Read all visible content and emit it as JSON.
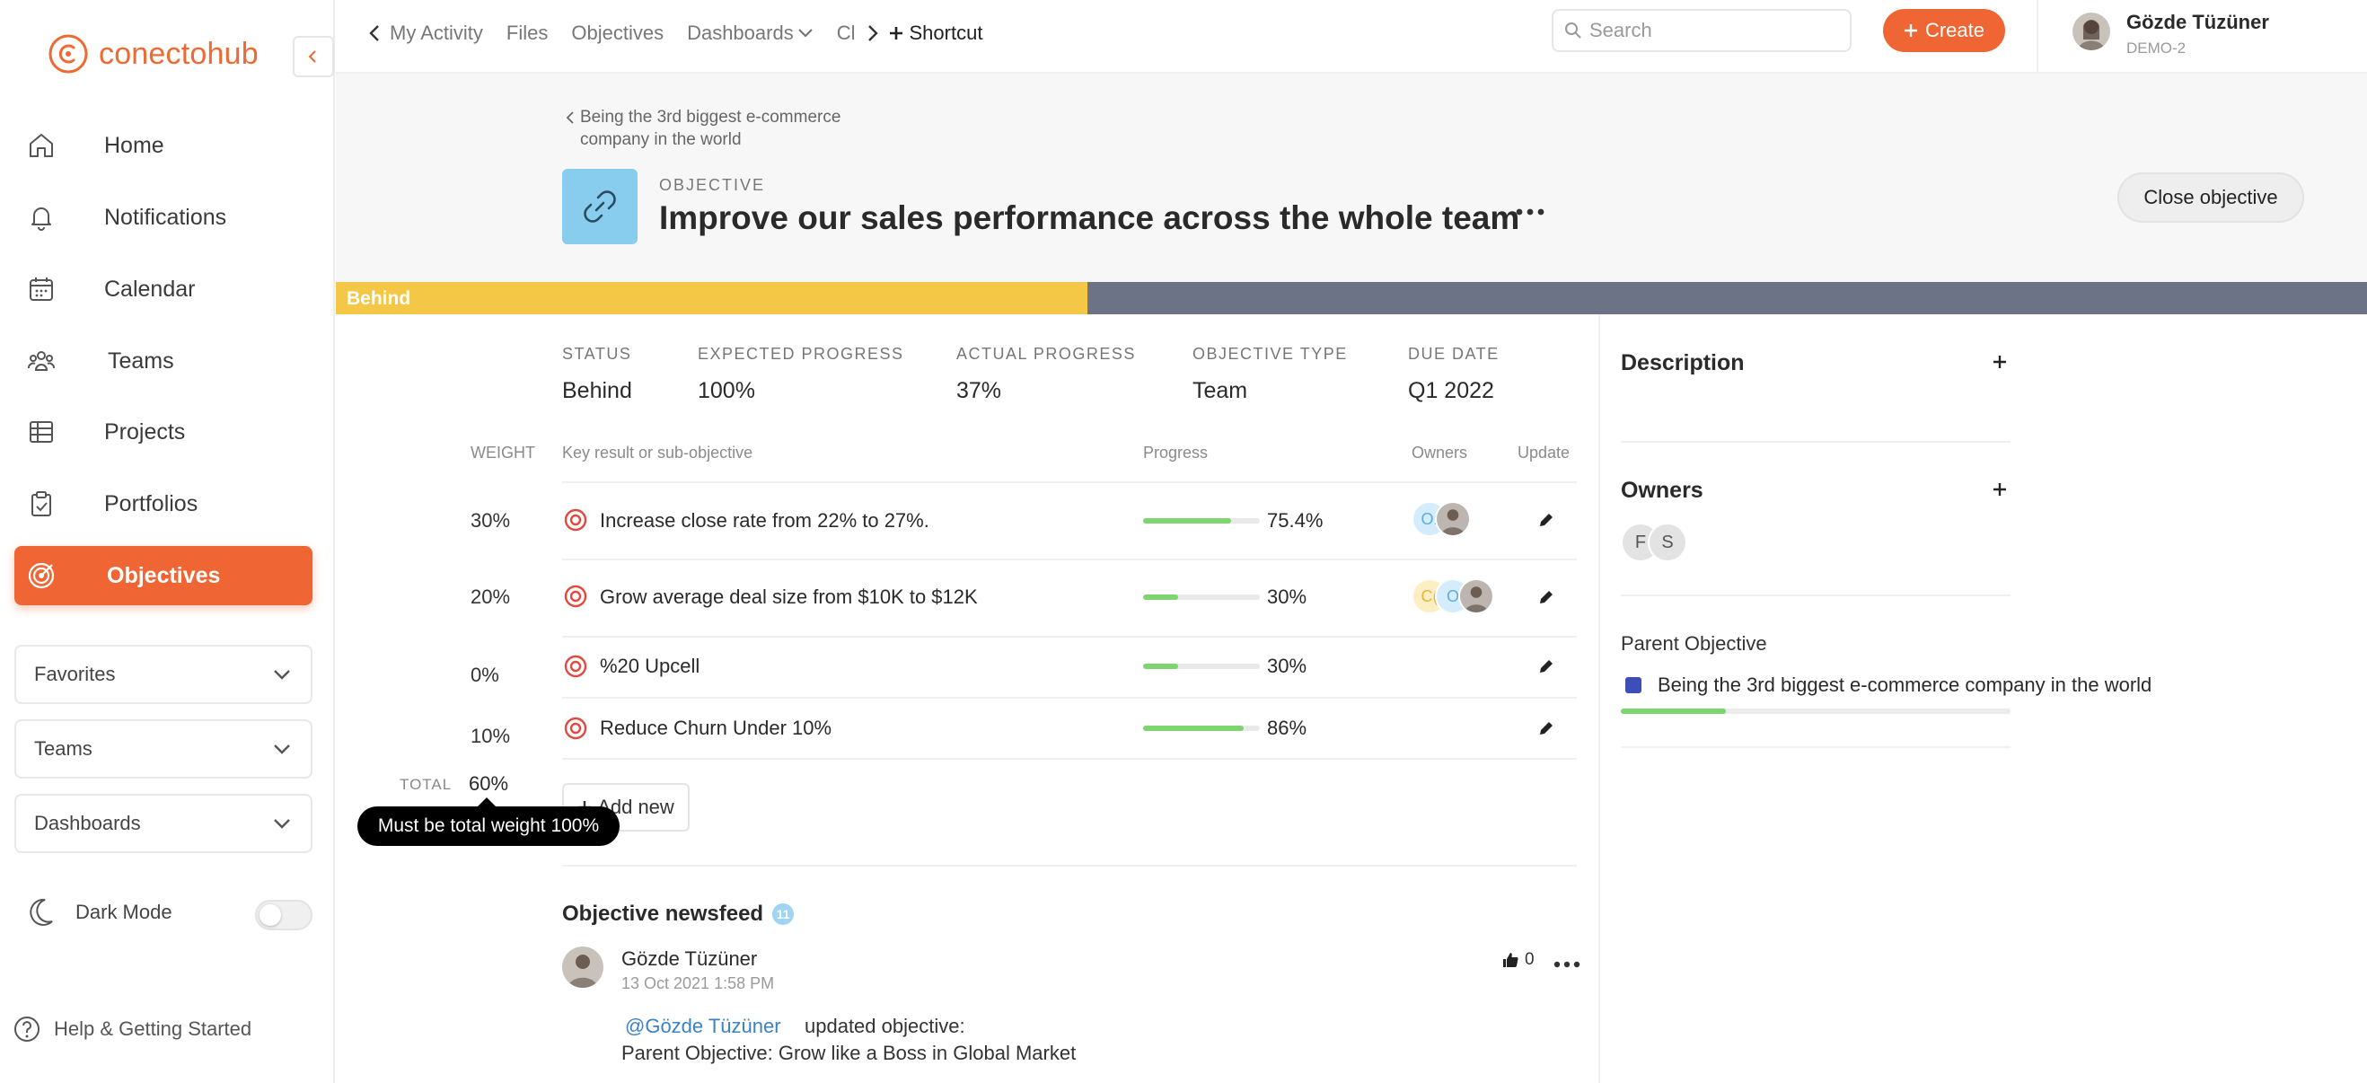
{
  "brand": {
    "name": "conectohub",
    "color": "#ef6533"
  },
  "sidebar": {
    "items": [
      {
        "label": "Home",
        "icon": "home-icon"
      },
      {
        "label": "Notifications",
        "icon": "bell-icon"
      },
      {
        "label": "Calendar",
        "icon": "calendar-icon"
      },
      {
        "label": "Teams",
        "icon": "teams-icon"
      },
      {
        "label": "Projects",
        "icon": "grid-icon"
      },
      {
        "label": "Portfolios",
        "icon": "clipboard-icon"
      },
      {
        "label": "Objectives",
        "icon": "target-icon",
        "active": true
      }
    ],
    "dropdowns": [
      {
        "label": "Favorites"
      },
      {
        "label": "Teams"
      },
      {
        "label": "Dashboards"
      }
    ],
    "dark_mode": {
      "label": "Dark Mode",
      "on": false
    },
    "help": "Help & Getting Started"
  },
  "topbar": {
    "tabs": [
      "My Activity",
      "Files",
      "Objectives",
      "Dashboards",
      "Cl"
    ],
    "shortcut": "Shortcut",
    "search_placeholder": "Search",
    "create_label": "Create",
    "user": {
      "name": "Gözde Tüzüner",
      "workspace": "DEMO-2"
    }
  },
  "objective": {
    "breadcrumb": "Being the 3rd biggest e-commerce company in the world",
    "kind": "OBJECTIVE",
    "title": "Improve our sales performance across the whole team",
    "close_label": "Close objective",
    "status_bar": {
      "label": "Behind",
      "progress": 0.37,
      "fill_color": "#f5c747",
      "track_color": "#6c7385"
    },
    "stats": [
      {
        "key": "STATUS",
        "value": "Behind"
      },
      {
        "key": "EXPECTED PROGRESS",
        "value": "100%"
      },
      {
        "key": "ACTUAL PROGRESS",
        "value": "37%"
      },
      {
        "key": "OBJECTIVE TYPE",
        "value": "Team"
      },
      {
        "key": "DUE DATE",
        "value": "Q1 2022"
      }
    ]
  },
  "table": {
    "headers": {
      "weight": "WEIGHT",
      "name": "Key result or sub-objective",
      "progress": "Progress",
      "owners": "Owners",
      "update": "Update"
    },
    "rows": [
      {
        "weight": "30%",
        "name": "Increase close rate from 22% to 27%.",
        "progress_value": 75.4,
        "progress_text": "75.4%",
        "owners": [
          "O:",
          "photo"
        ]
      },
      {
        "weight": "20%",
        "name": "Grow average deal size from $10K to $12K",
        "progress_value": 30,
        "progress_text": "30%",
        "owners": [
          "C(",
          "O",
          "photo"
        ]
      },
      {
        "weight": "0%",
        "name": "%20 Upcell",
        "progress_value": 30,
        "progress_text": "30%",
        "owners": []
      },
      {
        "weight": "10%",
        "name": "Reduce Churn Under 10%",
        "progress_value": 86,
        "progress_text": "86%",
        "owners": []
      }
    ],
    "total_label": "TOTAL",
    "total_value": "60%",
    "add_new": "Add new",
    "tooltip": "Must be total weight 100%"
  },
  "newsfeed": {
    "title": "Objective newsfeed",
    "count": "11",
    "post": {
      "author": "Gözde Tüzüner",
      "date": "13 Oct 2021 1:58 PM",
      "likes": "0",
      "mention": "@Gözde Tüzüner",
      "action": "updated objective:",
      "detail": "Parent Objective: Grow like a Boss in Global Market"
    }
  },
  "right_panel": {
    "description_title": "Description",
    "owners_title": "Owners",
    "owners": [
      "F",
      "S"
    ],
    "parent_title": "Parent Objective",
    "parent_name": "Being the 3rd biggest e-commerce company in the world",
    "parent_progress": 0.27
  }
}
